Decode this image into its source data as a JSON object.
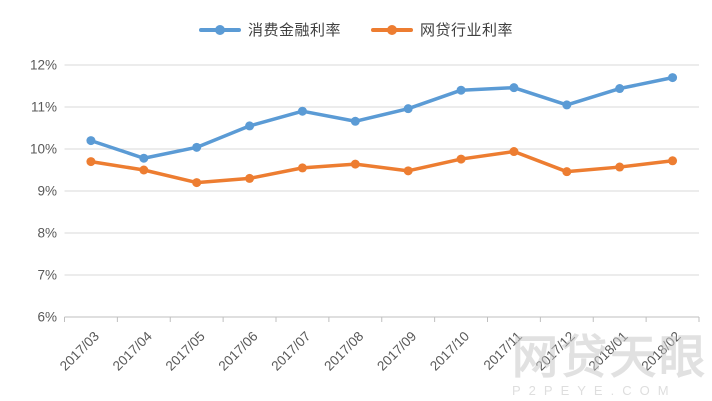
{
  "chart_data": {
    "type": "line",
    "title": "",
    "categories": [
      "2017/03",
      "2017/04",
      "2017/05",
      "2017/06",
      "2017/07",
      "2017/08",
      "2017/09",
      "2017/10",
      "2017/11",
      "2017/12",
      "2018/01",
      "2018/02"
    ],
    "series": [
      {
        "name": "消费金融利率",
        "color": "#5B9BD5",
        "values": [
          10.2,
          9.78,
          10.04,
          10.55,
          10.9,
          10.66,
          10.96,
          11.4,
          11.46,
          11.05,
          11.44,
          11.7
        ]
      },
      {
        "name": "网贷行业利率",
        "color": "#ED7D31",
        "values": [
          9.7,
          9.5,
          9.2,
          9.3,
          9.55,
          9.64,
          9.48,
          9.76,
          9.94,
          9.46,
          9.57,
          9.72
        ]
      }
    ],
    "xlabel": "",
    "ylabel": "",
    "ylim": [
      6,
      12
    ],
    "ytick_step": 1,
    "ytick_labels": [
      "6%",
      "7%",
      "8%",
      "9%",
      "10%",
      "11%",
      "12%"
    ],
    "grid": "horizontal",
    "legend_position": "top",
    "colors": {
      "gridline": "#d9d9d9",
      "axis": "#bfbfbf",
      "tick_text": "#595959"
    }
  },
  "watermark": {
    "line1": "网贷天眼",
    "line2": "P2PEYE.COM"
  }
}
